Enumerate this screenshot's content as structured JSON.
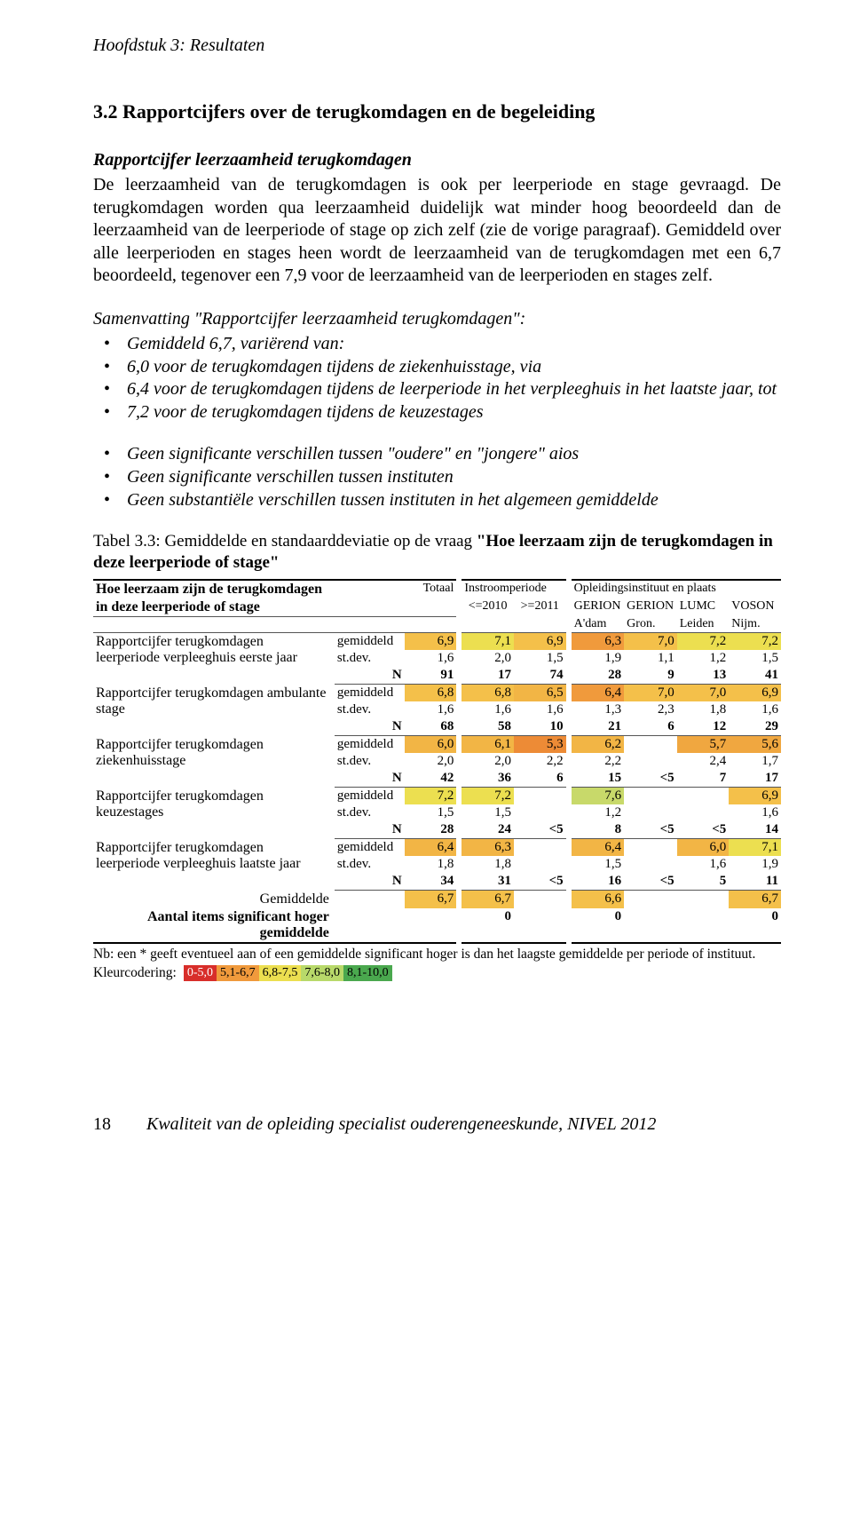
{
  "chapter_header": "Hoofdstuk 3: Resultaten",
  "section_title": "3.2   Rapportcijfers over de terugkomdagen en de begeleiding",
  "subhead": "Rapportcijfer leerzaamheid terugkomdagen",
  "paragraph": "De leerzaamheid van de terugkomdagen is ook per leerperiode en stage gevraagd. De terugkomdagen worden qua leerzaamheid duidelijk wat minder hoog beoordeeld dan de leerzaamheid van de leerperiode of stage op zich zelf (zie de vorige paragraaf). Gemiddeld over alle leerperioden en stages heen wordt de leerzaamheid van de terugkomdagen met een 6,7 beoordeeld, tegenover een 7,9 voor de leerzaamheid van de leerperioden en stages zelf.",
  "summary_title": "Samenvatting \"Rapportcijfer leerzaamheid terugkomdagen\":",
  "bullets1": [
    "Gemiddeld 6,7, variërend van:",
    "6,0 voor de terugkomdagen tijdens de ziekenhuisstage, via",
    "6,4 voor de terugkomdagen tijdens de leerperiode in het verpleeghuis in het laatste jaar, tot",
    "7,2 voor de terugkomdagen tijdens de keuzestages"
  ],
  "bullets2": [
    "Geen significante verschillen tussen \"oudere\" en \"jongere\" aios",
    "Geen significante verschillen tussen instituten",
    "Geen substantiële verschillen tussen instituten in het algemeen gemiddelde"
  ],
  "table_caption_prefix": "Tabel 3.3: Gemiddelde en standaarddeviatie op de vraag ",
  "table_caption_bold": "\"Hoe leerzaam zijn de terugkomdagen in deze leerperiode of stage\"",
  "table": {
    "header_left_1": "Hoe leerzaam zijn de terugkomdagen",
    "header_left_2": "in deze leerperiode of stage",
    "col_total": "Totaal",
    "col_instroom": "Instroomperiode",
    "col_le2010": "<=2010",
    "col_ge2011": ">=2011",
    "col_inst": "Opleidingsinstituut en plaats",
    "col_gerion_a": "GERION",
    "col_gerion_a2": "A'dam",
    "col_gerion_g": "GERION",
    "col_gerion_g2": "Gron.",
    "col_lumc": "LUMC",
    "col_lumc2": "Leiden",
    "col_voson": "VOSON",
    "col_voson2": "Nijm.",
    "stats": {
      "gem": "gemiddeld",
      "sd": "st.dev.",
      "n": "N"
    },
    "rows": [
      {
        "label": "Rapportcijfer terugkomdagen leerperiode verpleeghuis eerste jaar",
        "gem": [
          "6,9",
          "7,1",
          "6,9",
          "6,3",
          "7,0",
          "7,2",
          "7,2"
        ],
        "gem_color": [
          "#f4c04a",
          "#ecdf50",
          "#f4c04a",
          "#f09a3c",
          "#f4c04a",
          "#ecdf50",
          "#ecdf50"
        ],
        "sd": [
          "1,6",
          "2,0",
          "1,5",
          "1,9",
          "1,1",
          "1,2",
          "1,5"
        ],
        "n": [
          "91",
          "17",
          "74",
          "28",
          "9",
          "13",
          "41"
        ]
      },
      {
        "label": "Rapportcijfer terugkomdagen ambulante stage",
        "gem": [
          "6,8",
          "6,8",
          "6,5",
          "6,4",
          "7,0",
          "7,0",
          "6,9"
        ],
        "gem_color": [
          "#f4c04a",
          "#f4c04a",
          "#f2b545",
          "#f09a3c",
          "#f4c04a",
          "#f4c04a",
          "#f4c04a"
        ],
        "sd": [
          "1,6",
          "1,6",
          "1,6",
          "1,3",
          "2,3",
          "1,8",
          "1,6"
        ],
        "n": [
          "68",
          "58",
          "10",
          "21",
          "6",
          "12",
          "29"
        ]
      },
      {
        "label": "Rapportcijfer terugkomdagen ziekenhuisstage",
        "gem": [
          "6,0",
          "6,1",
          "5,3",
          "6,2",
          "",
          "5,7",
          "5,6"
        ],
        "gem_color": [
          "#f2b545",
          "#f2b545",
          "#ed8b36",
          "#f2b545",
          "",
          "#f0a740",
          "#f0a740"
        ],
        "sd": [
          "2,0",
          "2,0",
          "2,2",
          "2,2",
          "",
          "2,4",
          "1,7"
        ],
        "n": [
          "42",
          "36",
          "6",
          "15",
          "<5",
          "7",
          "17"
        ]
      },
      {
        "label": "Rapportcijfer terugkomdagen keuzestages",
        "gem": [
          "7,2",
          "7,2",
          "",
          "7,6",
          "",
          "",
          "6,9"
        ],
        "gem_color": [
          "#ecdf50",
          "#ecdf50",
          "",
          "#c8d96a",
          "",
          "",
          "#f4c04a"
        ],
        "sd": [
          "1,5",
          "1,5",
          "",
          "1,2",
          "",
          "",
          "1,6"
        ],
        "n": [
          "28",
          "24",
          "<5",
          "8",
          "<5",
          "<5",
          "14"
        ]
      },
      {
        "label": "Rapportcijfer terugkomdagen leerperiode verpleeghuis laatste jaar",
        "gem": [
          "6,4",
          "6,3",
          "",
          "6,4",
          "",
          "6,0",
          "7,1"
        ],
        "gem_color": [
          "#f2b545",
          "#f2b545",
          "",
          "#f2b545",
          "",
          "#f2b545",
          "#ecdf50"
        ],
        "sd": [
          "1,8",
          "1,8",
          "",
          "1,5",
          "",
          "1,6",
          "1,9"
        ],
        "n": [
          "34",
          "31",
          "<5",
          "16",
          "<5",
          "5",
          "11"
        ]
      }
    ],
    "overall_label": "Gemiddelde",
    "overall": [
      "6,7",
      "6,7",
      "",
      "6,6",
      "",
      "",
      "6,7"
    ],
    "overall_color": [
      "#f4c04a",
      "#f4c04a",
      "",
      "#f4c04a",
      "",
      "",
      "#f4c04a"
    ],
    "sig_label": "Aantal items significant hoger gemiddelde",
    "sig": [
      "",
      "0",
      "",
      "0",
      "",
      "",
      "0"
    ]
  },
  "note": "Nb: een * geeft eventueel aan of een gemiddelde significant hoger is dan het laagste gemiddelde per periode of instituut.",
  "legend_label": "Kleurcodering:",
  "legend": [
    {
      "text": "0-5,0",
      "bg": "#d82e2a",
      "fg": "#ffffff"
    },
    {
      "text": "5,1-6,7",
      "bg": "#f09a3c",
      "fg": "#000000"
    },
    {
      "text": "6,8-7,5",
      "bg": "#ecdf50",
      "fg": "#000000"
    },
    {
      "text": "7,6-8,0",
      "bg": "#b8d96a",
      "fg": "#000000"
    },
    {
      "text": "8,1-10,0",
      "bg": "#4aa84e",
      "fg": "#000000"
    }
  ],
  "footer_page": "18",
  "footer_title": "Kwaliteit van de opleiding specialist ouderengeneeskunde, NIVEL 2012"
}
